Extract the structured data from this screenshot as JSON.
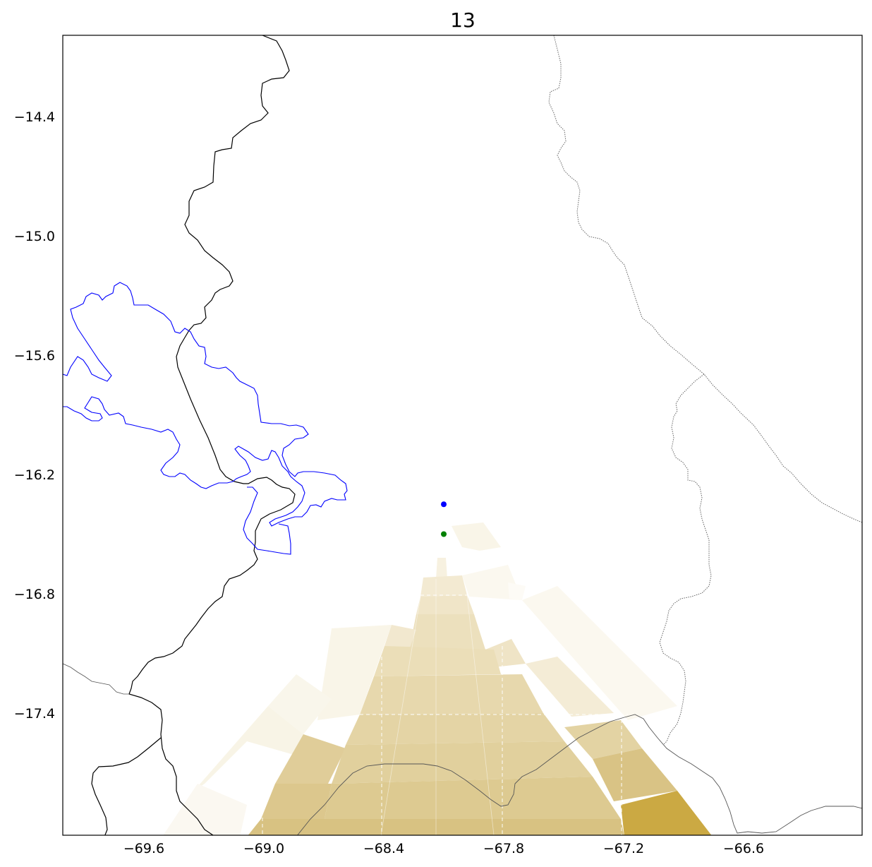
{
  "title": "13",
  "map": {
    "x_ticks": [
      {
        "value": -69.6,
        "label": "−69.6"
      },
      {
        "value": -69.0,
        "label": "−69.0"
      },
      {
        "value": -68.4,
        "label": "−68.4"
      },
      {
        "value": -67.8,
        "label": "−67.8"
      },
      {
        "value": -67.2,
        "label": "−67.2"
      },
      {
        "value": -66.6,
        "label": "−66.6"
      }
    ],
    "y_ticks": [
      {
        "value": -14.4,
        "label": "−14.4"
      },
      {
        "value": -15.0,
        "label": "−15.0"
      },
      {
        "value": -15.6,
        "label": "−15.6"
      },
      {
        "value": -16.2,
        "label": "−16.2"
      },
      {
        "value": -16.8,
        "label": "−16.8"
      },
      {
        "value": -17.4,
        "label": "−17.4"
      }
    ],
    "markers": [
      {
        "name": "blue-point",
        "lon": -68.1,
        "lat": -16.35,
        "color": "#0000ff"
      },
      {
        "name": "green-point",
        "lon": -68.1,
        "lat": -16.5,
        "color": "#008000"
      }
    ],
    "colors": {
      "shade_light": "#fbf7ec",
      "shade_dark": "#c9a540",
      "lake": "#0000ff",
      "border": "#000000",
      "admin": "#777777"
    }
  }
}
